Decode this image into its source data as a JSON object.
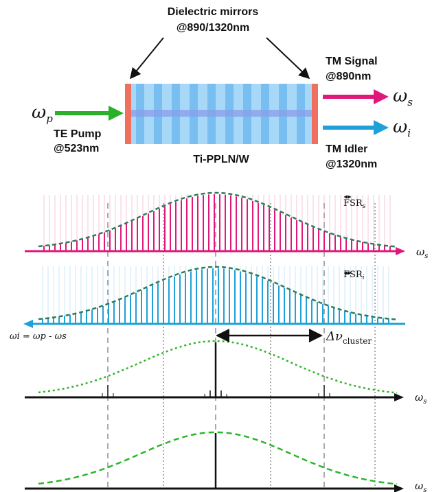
{
  "setup": {
    "mirrors_label_line1": "Dielectric mirrors",
    "mirrors_label_line2": "@890/1320nm",
    "pump": {
      "symbol": "ω",
      "sub": "p",
      "label_line1": "TE Pump",
      "label_line2": "@523nm"
    },
    "signal": {
      "symbol": "ω",
      "sub": "s",
      "label_line1": "TM Signal",
      "label_line2": "@890nm"
    },
    "idler": {
      "symbol": "ω",
      "sub": "i",
      "label_line1": "TM Idler",
      "label_line2": "@1320nm"
    },
    "waveguide_label": "Ti-PPLN/W"
  },
  "panels": {
    "signal_comb": {
      "fsr_main": "FSR",
      "fsr_sub": "s",
      "axis_symbol": "ω",
      "axis_sub": "s"
    },
    "idler_comb": {
      "fsr_main": "FSR",
      "fsr_sub": "i",
      "axis_relation": "ωi = ωp - ωs"
    },
    "cluster": {
      "delta_label": "Δν",
      "delta_sub": "cluster",
      "axis_symbol": "ω",
      "axis_sub": "s"
    },
    "single": {
      "axis_symbol": "ω",
      "axis_sub": "s"
    }
  },
  "colors": {
    "signal": "#e0187a",
    "idler": "#1ea0d8",
    "pump": "#2ab02a",
    "mirror": "#f07060",
    "crystal": "#8cc8f0",
    "envelope_dark": "#2d7d5a",
    "envelope_light": "#2bb52b"
  }
}
